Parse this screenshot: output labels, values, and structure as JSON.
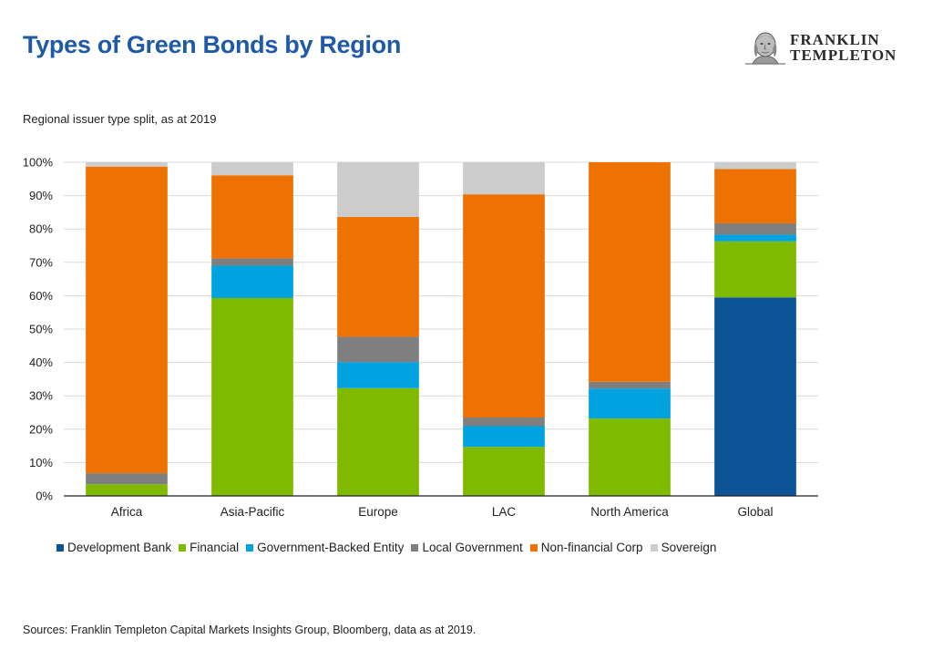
{
  "header": {
    "title": "Types of Green Bonds by Region",
    "logo": {
      "line1": "FRANKLIN",
      "line2": "TEMPLETON",
      "icon": "franklin-portrait-icon"
    }
  },
  "subtitle": "Regional issuer type split, as at 2019",
  "footer": {
    "source": "Sources: Franklin Templeton Capital Markets Insights Group, Bloomberg, data as at 2019."
  },
  "colors": {
    "Development Bank": "#0b5394",
    "Financial": "#7fba00",
    "Government-Backed Entity": "#00a2e0",
    "Local Government": "#7f7f7f",
    "Non-financial Corp": "#ee7202",
    "Sovereign": "#cccccc",
    "title": "#1f5aa6"
  },
  "chart_data": {
    "type": "bar",
    "stacked": true,
    "title": "",
    "xlabel": "",
    "ylabel": "",
    "ylim": [
      0,
      100
    ],
    "y_ticks": [
      "0%",
      "10%",
      "20%",
      "30%",
      "40%",
      "50%",
      "60%",
      "70%",
      "80%",
      "90%",
      "100%"
    ],
    "grid": true,
    "legend_position": "bottom",
    "categories": [
      "Africa",
      "Asia-Pacific",
      "Europe",
      "LAC",
      "North America",
      "Global"
    ],
    "series": [
      {
        "name": "Development Bank",
        "values": [
          0,
          0,
          0,
          0,
          0,
          59.5
        ]
      },
      {
        "name": "Financial",
        "values": [
          3.5,
          59.3,
          32.3,
          14.7,
          23.2,
          16.8
        ]
      },
      {
        "name": "Government-Backed Entity",
        "values": [
          0,
          9.7,
          7.8,
          6.2,
          9.0,
          2.0
        ]
      },
      {
        "name": "Local Government",
        "values": [
          3.3,
          2.2,
          7.6,
          2.6,
          2.0,
          3.4
        ]
      },
      {
        "name": "Non-financial Corp",
        "values": [
          91.9,
          24.9,
          35.9,
          66.9,
          65.8,
          16.3
        ]
      },
      {
        "name": "Sovereign",
        "values": [
          1.3,
          3.9,
          16.4,
          9.6,
          0,
          2.0
        ]
      }
    ]
  }
}
